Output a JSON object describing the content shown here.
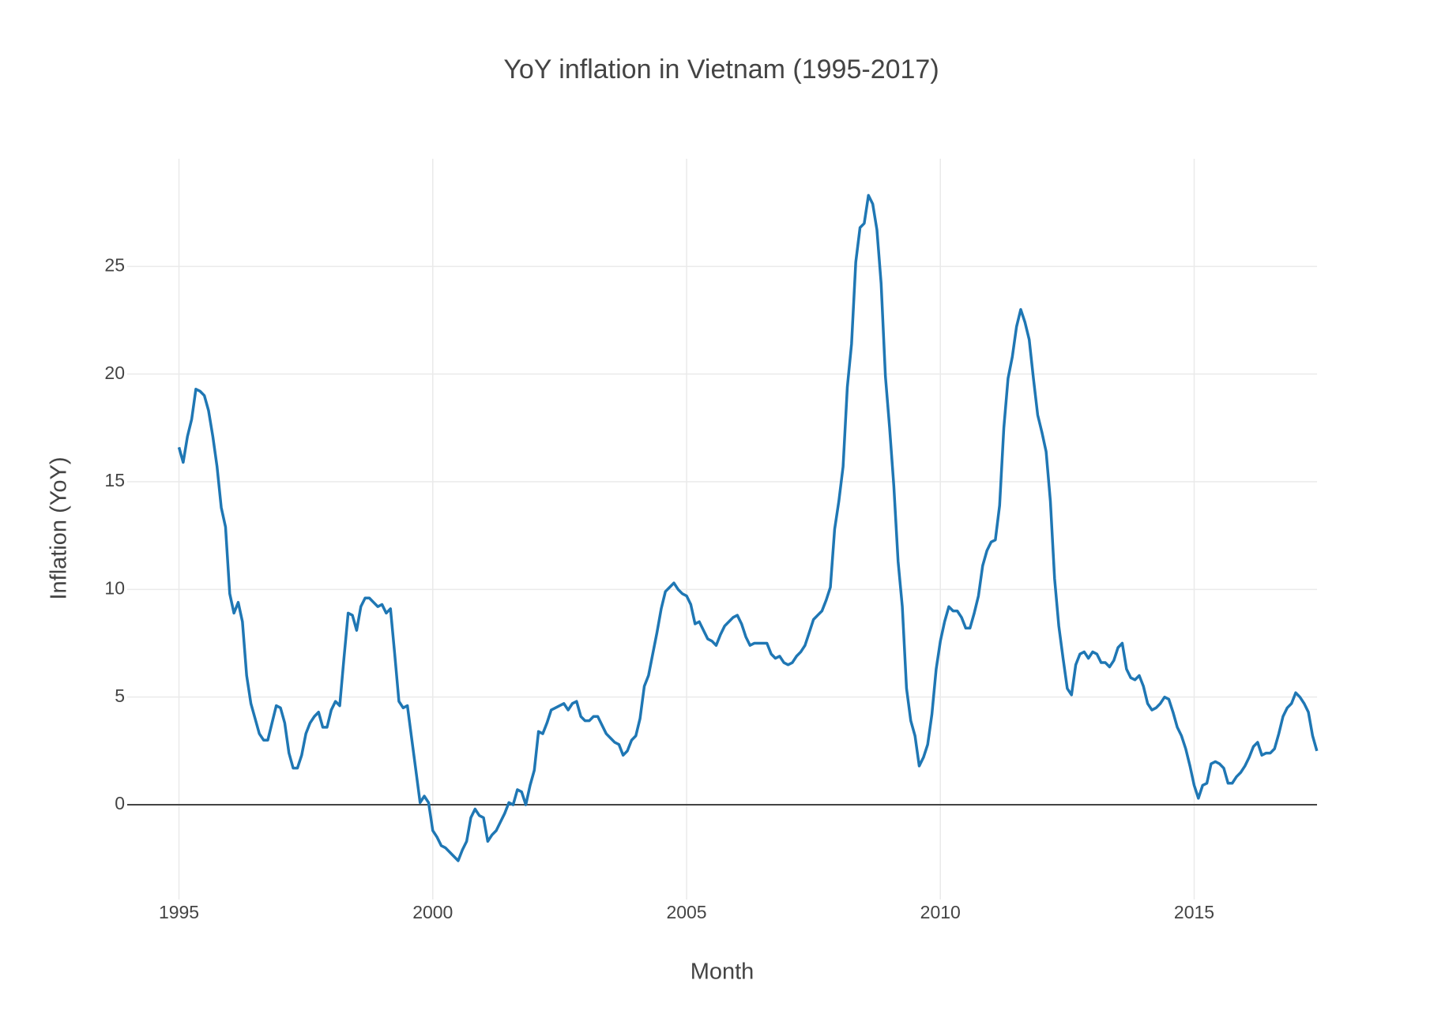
{
  "chart_data": {
    "type": "line",
    "title": "YoY inflation in Vietnam (1995-2017)",
    "x_label": "Month",
    "y_label": "Inflation (YoY)",
    "grid": true,
    "zeroline": true,
    "xlim": [
      1993.98,
      2017.42
    ],
    "xticks": [
      1995,
      2000,
      2005,
      2010,
      2015
    ],
    "ylim": [
      -4.4,
      30
    ],
    "yticks": [
      0,
      5,
      10,
      15,
      20,
      25
    ],
    "x": [
      1995,
      1995.083,
      1995.167,
      1995.25,
      1995.333,
      1995.417,
      1995.5,
      1995.583,
      1995.667,
      1995.75,
      1995.833,
      1995.917,
      1996,
      1996.083,
      1996.167,
      1996.25,
      1996.333,
      1996.417,
      1996.5,
      1996.583,
      1996.667,
      1996.75,
      1996.833,
      1996.917,
      1997,
      1997.083,
      1997.167,
      1997.25,
      1997.333,
      1997.417,
      1997.5,
      1997.583,
      1997.667,
      1997.75,
      1997.833,
      1997.917,
      1998,
      1998.083,
      1998.167,
      1998.25,
      1998.333,
      1998.417,
      1998.5,
      1998.583,
      1998.667,
      1998.75,
      1998.833,
      1998.917,
      1999,
      1999.083,
      1999.167,
      1999.25,
      1999.333,
      1999.417,
      1999.5,
      1999.583,
      1999.667,
      1999.75,
      1999.833,
      1999.917,
      2000,
      2000.083,
      2000.167,
      2000.25,
      2000.333,
      2000.417,
      2000.5,
      2000.583,
      2000.667,
      2000.75,
      2000.833,
      2000.917,
      2001,
      2001.083,
      2001.167,
      2001.25,
      2001.333,
      2001.417,
      2001.5,
      2001.583,
      2001.667,
      2001.75,
      2001.833,
      2001.917,
      2002,
      2002.083,
      2002.167,
      2002.25,
      2002.333,
      2002.417,
      2002.5,
      2002.583,
      2002.667,
      2002.75,
      2002.833,
      2002.917,
      2003,
      2003.083,
      2003.167,
      2003.25,
      2003.333,
      2003.417,
      2003.5,
      2003.583,
      2003.667,
      2003.75,
      2003.833,
      2003.917,
      2004,
      2004.083,
      2004.167,
      2004.25,
      2004.333,
      2004.417,
      2004.5,
      2004.583,
      2004.667,
      2004.75,
      2004.833,
      2004.917,
      2005,
      2005.083,
      2005.167,
      2005.25,
      2005.333,
      2005.417,
      2005.5,
      2005.583,
      2005.667,
      2005.75,
      2005.833,
      2005.917,
      2006,
      2006.083,
      2006.167,
      2006.25,
      2006.333,
      2006.417,
      2006.5,
      2006.583,
      2006.667,
      2006.75,
      2006.833,
      2006.917,
      2007,
      2007.083,
      2007.167,
      2007.25,
      2007.333,
      2007.417,
      2007.5,
      2007.583,
      2007.667,
      2007.75,
      2007.833,
      2007.917,
      2008,
      2008.083,
      2008.167,
      2008.25,
      2008.333,
      2008.417,
      2008.5,
      2008.583,
      2008.667,
      2008.75,
      2008.833,
      2008.917,
      2009,
      2009.083,
      2009.167,
      2009.25,
      2009.333,
      2009.417,
      2009.5,
      2009.583,
      2009.667,
      2009.75,
      2009.833,
      2009.917,
      2010,
      2010.083,
      2010.167,
      2010.25,
      2010.333,
      2010.417,
      2010.5,
      2010.583,
      2010.667,
      2010.75,
      2010.833,
      2010.917,
      2011,
      2011.083,
      2011.167,
      2011.25,
      2011.333,
      2011.417,
      2011.5,
      2011.583,
      2011.667,
      2011.75,
      2011.833,
      2011.917,
      2012,
      2012.083,
      2012.167,
      2012.25,
      2012.333,
      2012.417,
      2012.5,
      2012.583,
      2012.667,
      2012.75,
      2012.833,
      2012.917,
      2013,
      2013.083,
      2013.167,
      2013.25,
      2013.333,
      2013.417,
      2013.5,
      2013.583,
      2013.667,
      2013.75,
      2013.833,
      2013.917,
      2014,
      2014.083,
      2014.167,
      2014.25,
      2014.333,
      2014.417,
      2014.5,
      2014.583,
      2014.667,
      2014.75,
      2014.833,
      2014.917,
      2015,
      2015.083,
      2015.167,
      2015.25,
      2015.333,
      2015.417,
      2015.5,
      2015.583,
      2015.667,
      2015.75,
      2015.833,
      2015.917,
      2016,
      2016.083,
      2016.167,
      2016.25,
      2016.333,
      2016.417,
      2016.5,
      2016.583,
      2016.667,
      2016.75,
      2016.833,
      2016.917,
      2017,
      2017.083,
      2017.167,
      2017.25,
      2017.333,
      2017.417
    ],
    "series": [
      {
        "color": "#1f77b4",
        "values": [
          16.6,
          15.9,
          17.1,
          17.9,
          19.3,
          19.2,
          19.0,
          18.3,
          17.1,
          15.7,
          13.8,
          12.9,
          9.8,
          8.9,
          9.4,
          8.5,
          6.0,
          4.7,
          4.0,
          3.3,
          3.0,
          3.0,
          3.8,
          4.6,
          4.5,
          3.8,
          2.4,
          1.7,
          1.7,
          2.3,
          3.3,
          3.8,
          4.1,
          4.3,
          3.6,
          3.6,
          4.4,
          4.8,
          4.6,
          6.8,
          8.9,
          8.8,
          8.1,
          9.2,
          9.6,
          9.6,
          9.4,
          9.2,
          9.3,
          8.9,
          9.1,
          7.0,
          4.8,
          4.5,
          4.6,
          3.1,
          1.6,
          0.1,
          0.4,
          0.1,
          -1.2,
          -1.5,
          -1.9,
          -2.0,
          -2.2,
          -2.4,
          -2.6,
          -2.1,
          -1.7,
          -0.6,
          -0.2,
          -0.5,
          -0.6,
          -1.7,
          -1.4,
          -1.2,
          -0.8,
          -0.4,
          0.1,
          0.0,
          0.7,
          0.6,
          0.0,
          0.9,
          1.6,
          3.4,
          3.3,
          3.8,
          4.4,
          4.5,
          4.6,
          4.7,
          4.4,
          4.7,
          4.8,
          4.1,
          3.9,
          3.9,
          4.1,
          4.1,
          3.7,
          3.3,
          3.1,
          2.9,
          2.8,
          2.3,
          2.5,
          3.0,
          3.2,
          4.0,
          5.5,
          6.0,
          7.0,
          8.0,
          9.1,
          9.9,
          10.1,
          10.3,
          10.0,
          9.8,
          9.7,
          9.3,
          8.4,
          8.5,
          8.1,
          7.7,
          7.6,
          7.4,
          7.9,
          8.3,
          8.5,
          8.7,
          8.8,
          8.4,
          7.8,
          7.4,
          7.5,
          7.5,
          7.5,
          7.5,
          7.0,
          6.8,
          6.9,
          6.6,
          6.5,
          6.6,
          6.9,
          7.1,
          7.4,
          8.0,
          8.6,
          8.8,
          9.0,
          9.5,
          10.1,
          12.8,
          14.1,
          15.7,
          19.4,
          21.4,
          25.2,
          26.8,
          27.0,
          28.3,
          27.9,
          26.7,
          24.2,
          19.9,
          17.5,
          14.8,
          11.3,
          9.2,
          5.4,
          3.9,
          3.2,
          1.8,
          2.2,
          2.8,
          4.2,
          6.3,
          7.6,
          8.5,
          9.2,
          9.0,
          9.0,
          8.7,
          8.2,
          8.2,
          8.9,
          9.7,
          11.1,
          11.8,
          12.2,
          12.3,
          13.9,
          17.5,
          19.8,
          20.8,
          22.2,
          23.0,
          22.4,
          21.6,
          19.8,
          18.1,
          17.3,
          16.4,
          14.1,
          10.5,
          8.3,
          6.8,
          5.4,
          5.1,
          6.5,
          7.0,
          7.1,
          6.8,
          7.1,
          7.0,
          6.6,
          6.6,
          6.4,
          6.7,
          7.3,
          7.5,
          6.3,
          5.9,
          5.8,
          6.0,
          5.5,
          4.7,
          4.4,
          4.5,
          4.7,
          5.0,
          4.9,
          4.3,
          3.6,
          3.2,
          2.6,
          1.8,
          0.9,
          0.3,
          0.9,
          1.0,
          1.9,
          2.0,
          1.9,
          1.7,
          1.0,
          1.0,
          1.3,
          1.5,
          1.8,
          2.2,
          2.7,
          2.9,
          2.3,
          2.4,
          2.4,
          2.6,
          3.3,
          4.1,
          4.5,
          4.7,
          5.2,
          5.0,
          4.7,
          4.3,
          3.2,
          2.5
        ]
      }
    ]
  }
}
